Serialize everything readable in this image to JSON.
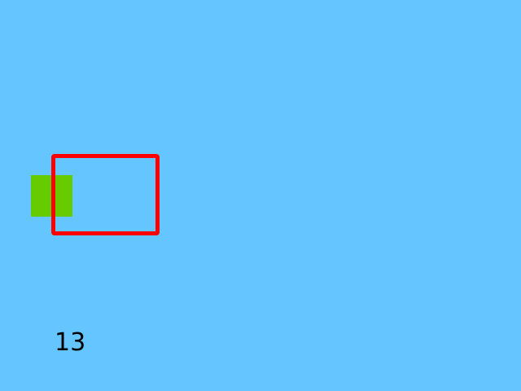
{
  "colors": {
    "background": "#64c5ff",
    "green_square": "#66cc00",
    "red_frame": "#ff0000",
    "counter_text": "#000000"
  },
  "counter": {
    "value": "13"
  }
}
